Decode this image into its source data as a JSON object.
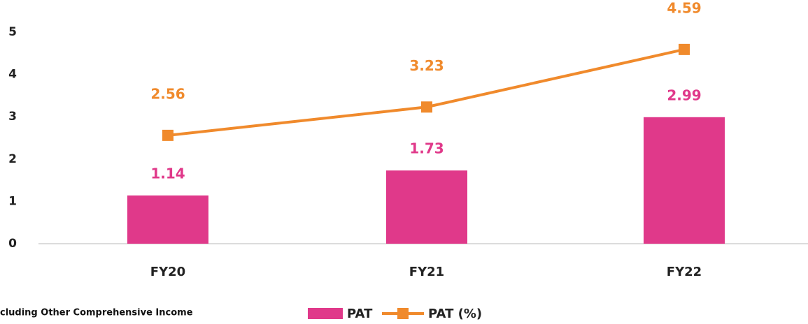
{
  "chart_data": {
    "type": "bar",
    "categories": [
      "FY20",
      "FY21",
      "FY22"
    ],
    "series": [
      {
        "name": "PAT",
        "type": "bar",
        "color": "#e0398a",
        "values": [
          1.14,
          1.73,
          2.99
        ]
      },
      {
        "name": "PAT (%)",
        "type": "line",
        "color": "#f08a2c",
        "values": [
          2.56,
          3.23,
          4.59
        ]
      }
    ],
    "ylim": [
      0,
      5
    ],
    "yticks": [
      0,
      1,
      2,
      3,
      4,
      5
    ],
    "grid": false,
    "footnote": "cluding Other Comprehensive Income",
    "legend": "bottom"
  }
}
